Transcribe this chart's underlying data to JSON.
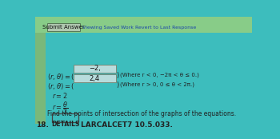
{
  "problem_number": "18.",
  "details_label": "DETAILS",
  "problem_id": "LARCALCET7 10.5.033.",
  "instruction": "Find the points of intersection of the graphs of the equations.",
  "answer1_value": "2,4",
  "answer1_condition": "(Where r > 0, 0 ≤ θ < 2π.)",
  "answer2_value": "−2,",
  "answer2_condition": "(Where r < 0, −2π < θ ≤ 0.)",
  "submit_label": "Submit Answer",
  "revert_label": "Viewing Saved Work Revert to Last Response",
  "bg_color": "#3dbdbd",
  "left_strip_color": "#7ab87a",
  "bottom_strip_color": "#88cc88",
  "details_box_bg": "#3dbdbd",
  "input_box_color": "#b8dcdc",
  "submit_box_color": "#b0c8b0",
  "text_color": "#1a1a1a",
  "dark_text": "#222222"
}
